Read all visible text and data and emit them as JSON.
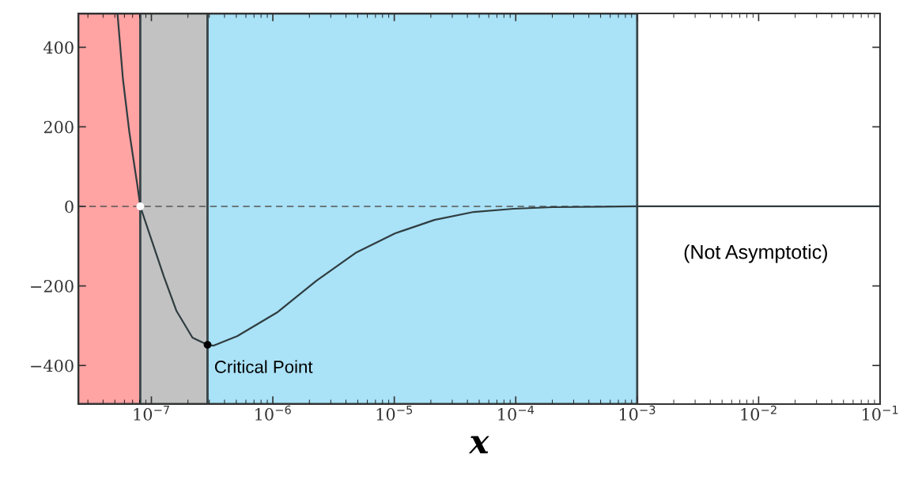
{
  "chart_data": {
    "type": "line",
    "xlabel": "x",
    "log": "x",
    "xlim": [
      2.5e-08,
      0.1
    ],
    "xticks": [
      {
        "value": 1e-07,
        "label": "10$^{−7}$"
      },
      {
        "value": 1e-06,
        "label": "10$^{−6}$"
      },
      {
        "value": 1e-05,
        "label": "10$^{−5}$"
      },
      {
        "value": 0.0001,
        "label": "10$^{−4}$"
      },
      {
        "value": 0.001,
        "label": "10$^{−3}$"
      },
      {
        "value": 0.01,
        "label": "10$^{−2}$"
      },
      {
        "value": 0.1,
        "label": "10$^{−1}$"
      }
    ],
    "ylim": [
      -497,
      485
    ],
    "yticks": [
      {
        "value": -400,
        "label": "−400"
      },
      {
        "value": -200,
        "label": "−200"
      },
      0,
      200,
      400
    ],
    "grid": false,
    "line_style": "solid",
    "series": [
      {
        "marker": "none",
        "color": "#2f3d40",
        "x": [
          5.26e-08,
          5.83e-08,
          6.58e-08,
          7.64e-08,
          8.1e-08,
          9.86e-08,
          1.27e-07,
          1.61e-07,
          2.18e-07,
          2.9e-07,
          3.26e-07,
          5.1e-07,
          1.08e-06,
          2.28e-06,
          4.8e-06,
          1.01e-05,
          2.14e-05,
          4.5e-05,
          9.6e-05,
          0.0002,
          0.001,
          0.1
        ],
        "values": [
          484,
          320,
          187,
          56,
          0,
          -78,
          -177,
          -263,
          -330,
          -348,
          -350,
          -326,
          -267,
          -187,
          -117,
          -68,
          -34,
          -14,
          -6,
          -2,
          0,
          0
        ]
      },
      {
        "type": "scatter",
        "marker": "circle",
        "x": [
          8.1e-08,
          2.9e-07
        ],
        "values": [
          0,
          -348
        ],
        "colors": [
          "#ffffff",
          "#000000"
        ]
      }
    ],
    "ref_lines": [
      {
        "axis": "y",
        "value": 0,
        "color": "#555555",
        "line_style": "dashed"
      }
    ],
    "bands": [
      {
        "axis": "x",
        "from": 2.5e-08,
        "to": 8.1e-08,
        "color": "#ffa3a3"
      },
      {
        "axis": "x",
        "from": 8.1e-08,
        "to": 2.9e-07,
        "color": "#c2c2c2"
      },
      {
        "axis": "x",
        "from": 2.9e-07,
        "to": 0.001,
        "color": "#aae2f7"
      }
    ],
    "annotations": [
      {
        "text": "Critical Point",
        "x": 2.9e-07,
        "y": -348
      },
      "(Not Asymptotic)"
    ]
  }
}
